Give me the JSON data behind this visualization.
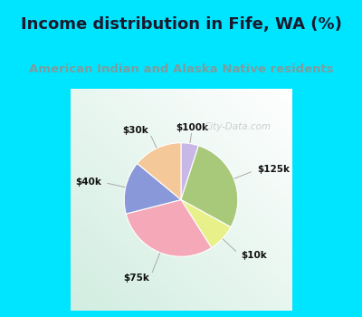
{
  "title": "Income distribution in Fife, WA (%)",
  "subtitle": "American Indian and Alaska Native residents",
  "title_fontsize": 13,
  "subtitle_fontsize": 9.5,
  "title_color": "#1a1a2e",
  "subtitle_color": "#7a9e9f",
  "background_cyan": "#00e5ff",
  "watermark": "City-Data.com",
  "slices": [
    {
      "label": "$100k",
      "value": 5,
      "color": "#c8b8e8"
    },
    {
      "label": "$125k",
      "value": 28,
      "color": "#a8c87a"
    },
    {
      "label": "$10k",
      "value": 8,
      "color": "#e8f08a"
    },
    {
      "label": "$75k",
      "value": 30,
      "color": "#f4a8b8"
    },
    {
      "label": "$40k",
      "value": 15,
      "color": "#8898d8"
    },
    {
      "label": "$30k",
      "value": 14,
      "color": "#f5c89a"
    }
  ]
}
